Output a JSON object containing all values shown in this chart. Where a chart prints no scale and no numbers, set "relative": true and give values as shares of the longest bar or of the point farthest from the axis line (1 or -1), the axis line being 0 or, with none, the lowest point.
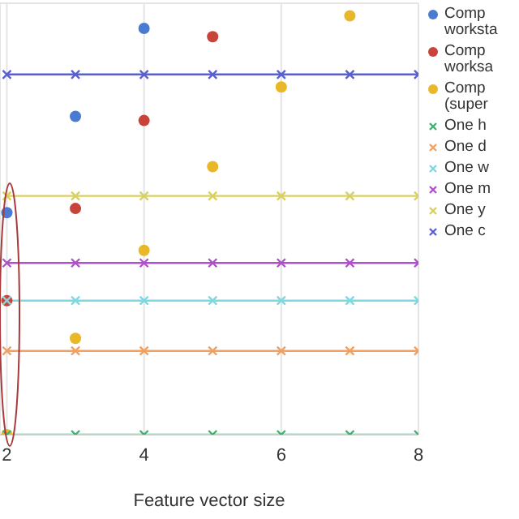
{
  "chart_data": {
    "type": "line",
    "xlabel": "Feature vector size",
    "relative": true,
    "xlim": [
      1.9,
      8
    ],
    "xticks": [
      2,
      4,
      6,
      8
    ],
    "tick_labels": "x",
    "grid": true,
    "legend": "top right",
    "series": [
      {
        "name": "Comp worksta",
        "type": "scatter",
        "marker": "circle",
        "color": "#4a7bd0",
        "x": [
          2,
          3,
          4
        ],
        "values": [
          0.53,
          0.76,
          0.97
        ]
      },
      {
        "name": "Comp worksa",
        "type": "scatter",
        "marker": "circle",
        "color": "#c8433a",
        "x": [
          2,
          3,
          4,
          5
        ],
        "values": [
          0.32,
          0.54,
          0.75,
          0.95
        ]
      },
      {
        "name": "Comp (super",
        "type": "scatter",
        "marker": "circle",
        "color": "#e8b828",
        "x": [
          2,
          3,
          4,
          5,
          6,
          7
        ],
        "values": [
          0,
          0.23,
          0.44,
          0.64,
          0.83,
          1
        ]
      },
      {
        "name": "One h",
        "marker": "cross",
        "color": "#40b070",
        "x": [
          2,
          3,
          4,
          5,
          6,
          7,
          8
        ],
        "values": [
          0,
          0,
          0,
          0,
          0,
          0,
          0
        ]
      },
      {
        "name": "One d",
        "marker": "cross",
        "color": "#f0a060",
        "x": [
          2,
          3,
          4,
          5,
          6,
          7,
          8
        ],
        "values": [
          0.2,
          0.2,
          0.2,
          0.2,
          0.2,
          0.2,
          0.2
        ]
      },
      {
        "name": "One w",
        "marker": "cross",
        "color": "#7fd8e0",
        "x": [
          2,
          3,
          4,
          5,
          6,
          7,
          8
        ],
        "values": [
          0.32,
          0.32,
          0.32,
          0.32,
          0.32,
          0.32,
          0.32
        ]
      },
      {
        "name": "One m",
        "marker": "cross",
        "color": "#b050c8",
        "x": [
          2,
          3,
          4,
          5,
          6,
          7,
          8
        ],
        "values": [
          0.41,
          0.41,
          0.41,
          0.41,
          0.41,
          0.41,
          0.41
        ]
      },
      {
        "name": "One y",
        "marker": "cross",
        "color": "#d8d060",
        "x": [
          2,
          3,
          4,
          5,
          6,
          7,
          8
        ],
        "values": [
          0.57,
          0.57,
          0.57,
          0.57,
          0.57,
          0.57,
          0.57
        ]
      },
      {
        "name": "One c",
        "marker": "cross",
        "color": "#5a5fd0",
        "x": [
          2,
          3,
          4,
          5,
          6,
          7,
          8
        ],
        "values": [
          0.86,
          0.86,
          0.86,
          0.86,
          0.86,
          0.86,
          0.86
        ]
      }
    ]
  }
}
